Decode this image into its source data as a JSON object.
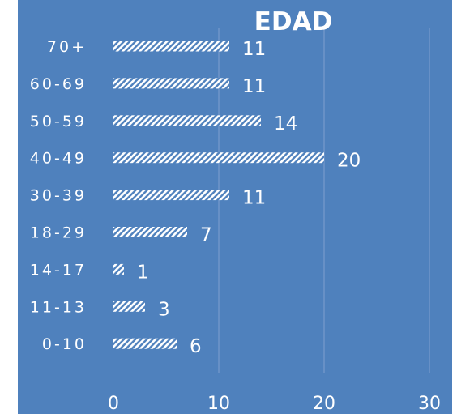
{
  "chart_data": {
    "type": "bar",
    "orientation": "horizontal",
    "title": "EDAD",
    "categories": [
      "70+",
      "60-69",
      "50-59",
      "40-49",
      "30-39",
      "18-29",
      "14-17",
      "11-13",
      "0-10"
    ],
    "values": [
      11,
      11,
      14,
      20,
      11,
      7,
      1,
      3,
      6
    ],
    "xlim": [
      0,
      30
    ],
    "xticks": [
      "0",
      "10",
      "20",
      "30"
    ],
    "grid": "vertical",
    "legend": "none",
    "bar_fill": "white diagonal hatch",
    "colors": {
      "background": "#4f81bd",
      "bar": "#ffffff",
      "gridline": "#7f9fd0",
      "text": "#ffffff"
    }
  }
}
